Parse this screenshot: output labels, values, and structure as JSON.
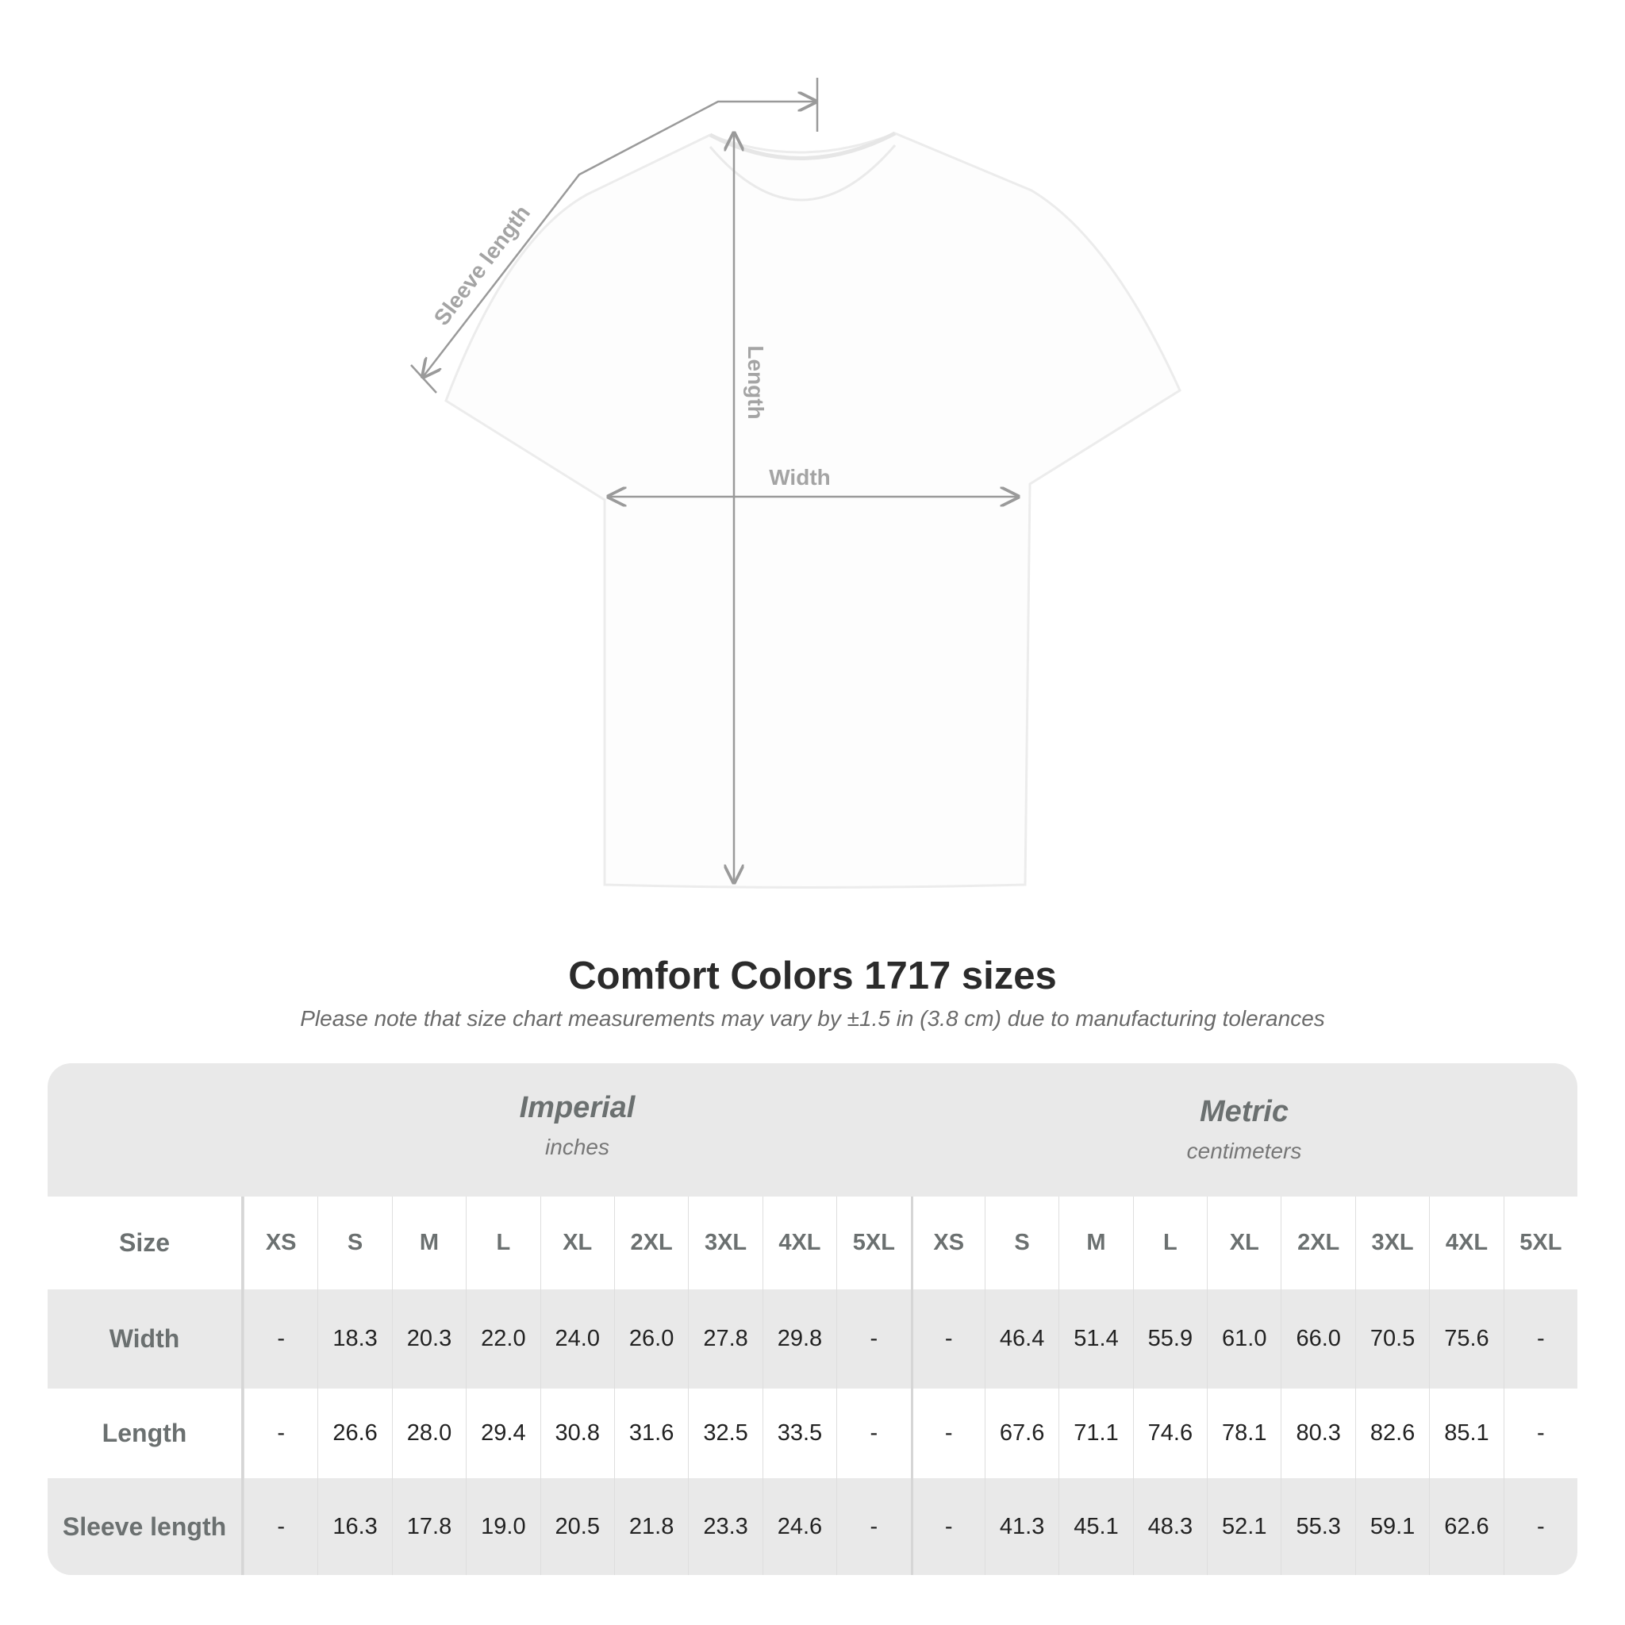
{
  "diagram": {
    "labels": {
      "sleeve": "Sleeve length",
      "length": "Length",
      "width": "Width"
    },
    "line_color": "#9a9a9a"
  },
  "title": "Comfort Colors 1717 sizes",
  "note": "Please note that size chart measurements may vary by ±1.5 in (3.8 cm) due to manufacturing tolerances",
  "table": {
    "imperial": {
      "name": "Imperial",
      "unit": "inches"
    },
    "metric": {
      "name": "Metric",
      "unit": "centimeters"
    },
    "size_label": "Size",
    "sizes": [
      "XS",
      "S",
      "M",
      "L",
      "XL",
      "2XL",
      "3XL",
      "4XL",
      "5XL"
    ],
    "rows": [
      {
        "label": "Width",
        "imperial": [
          "-",
          "18.3",
          "20.3",
          "22.0",
          "24.0",
          "26.0",
          "27.8",
          "29.8",
          "-"
        ],
        "metric": [
          "-",
          "46.4",
          "51.4",
          "55.9",
          "61.0",
          "66.0",
          "70.5",
          "75.6",
          "-"
        ]
      },
      {
        "label": "Length",
        "imperial": [
          "-",
          "26.6",
          "28.0",
          "29.4",
          "30.8",
          "31.6",
          "32.5",
          "33.5",
          "-"
        ],
        "metric": [
          "-",
          "67.6",
          "71.1",
          "74.6",
          "78.1",
          "80.3",
          "82.6",
          "85.1",
          "-"
        ]
      },
      {
        "label": "Sleeve length",
        "imperial": [
          "-",
          "16.3",
          "17.8",
          "19.0",
          "20.5",
          "21.8",
          "23.3",
          "24.6",
          "-"
        ],
        "metric": [
          "-",
          "41.3",
          "45.1",
          "48.3",
          "52.1",
          "55.3",
          "59.1",
          "62.6",
          "-"
        ]
      }
    ]
  }
}
